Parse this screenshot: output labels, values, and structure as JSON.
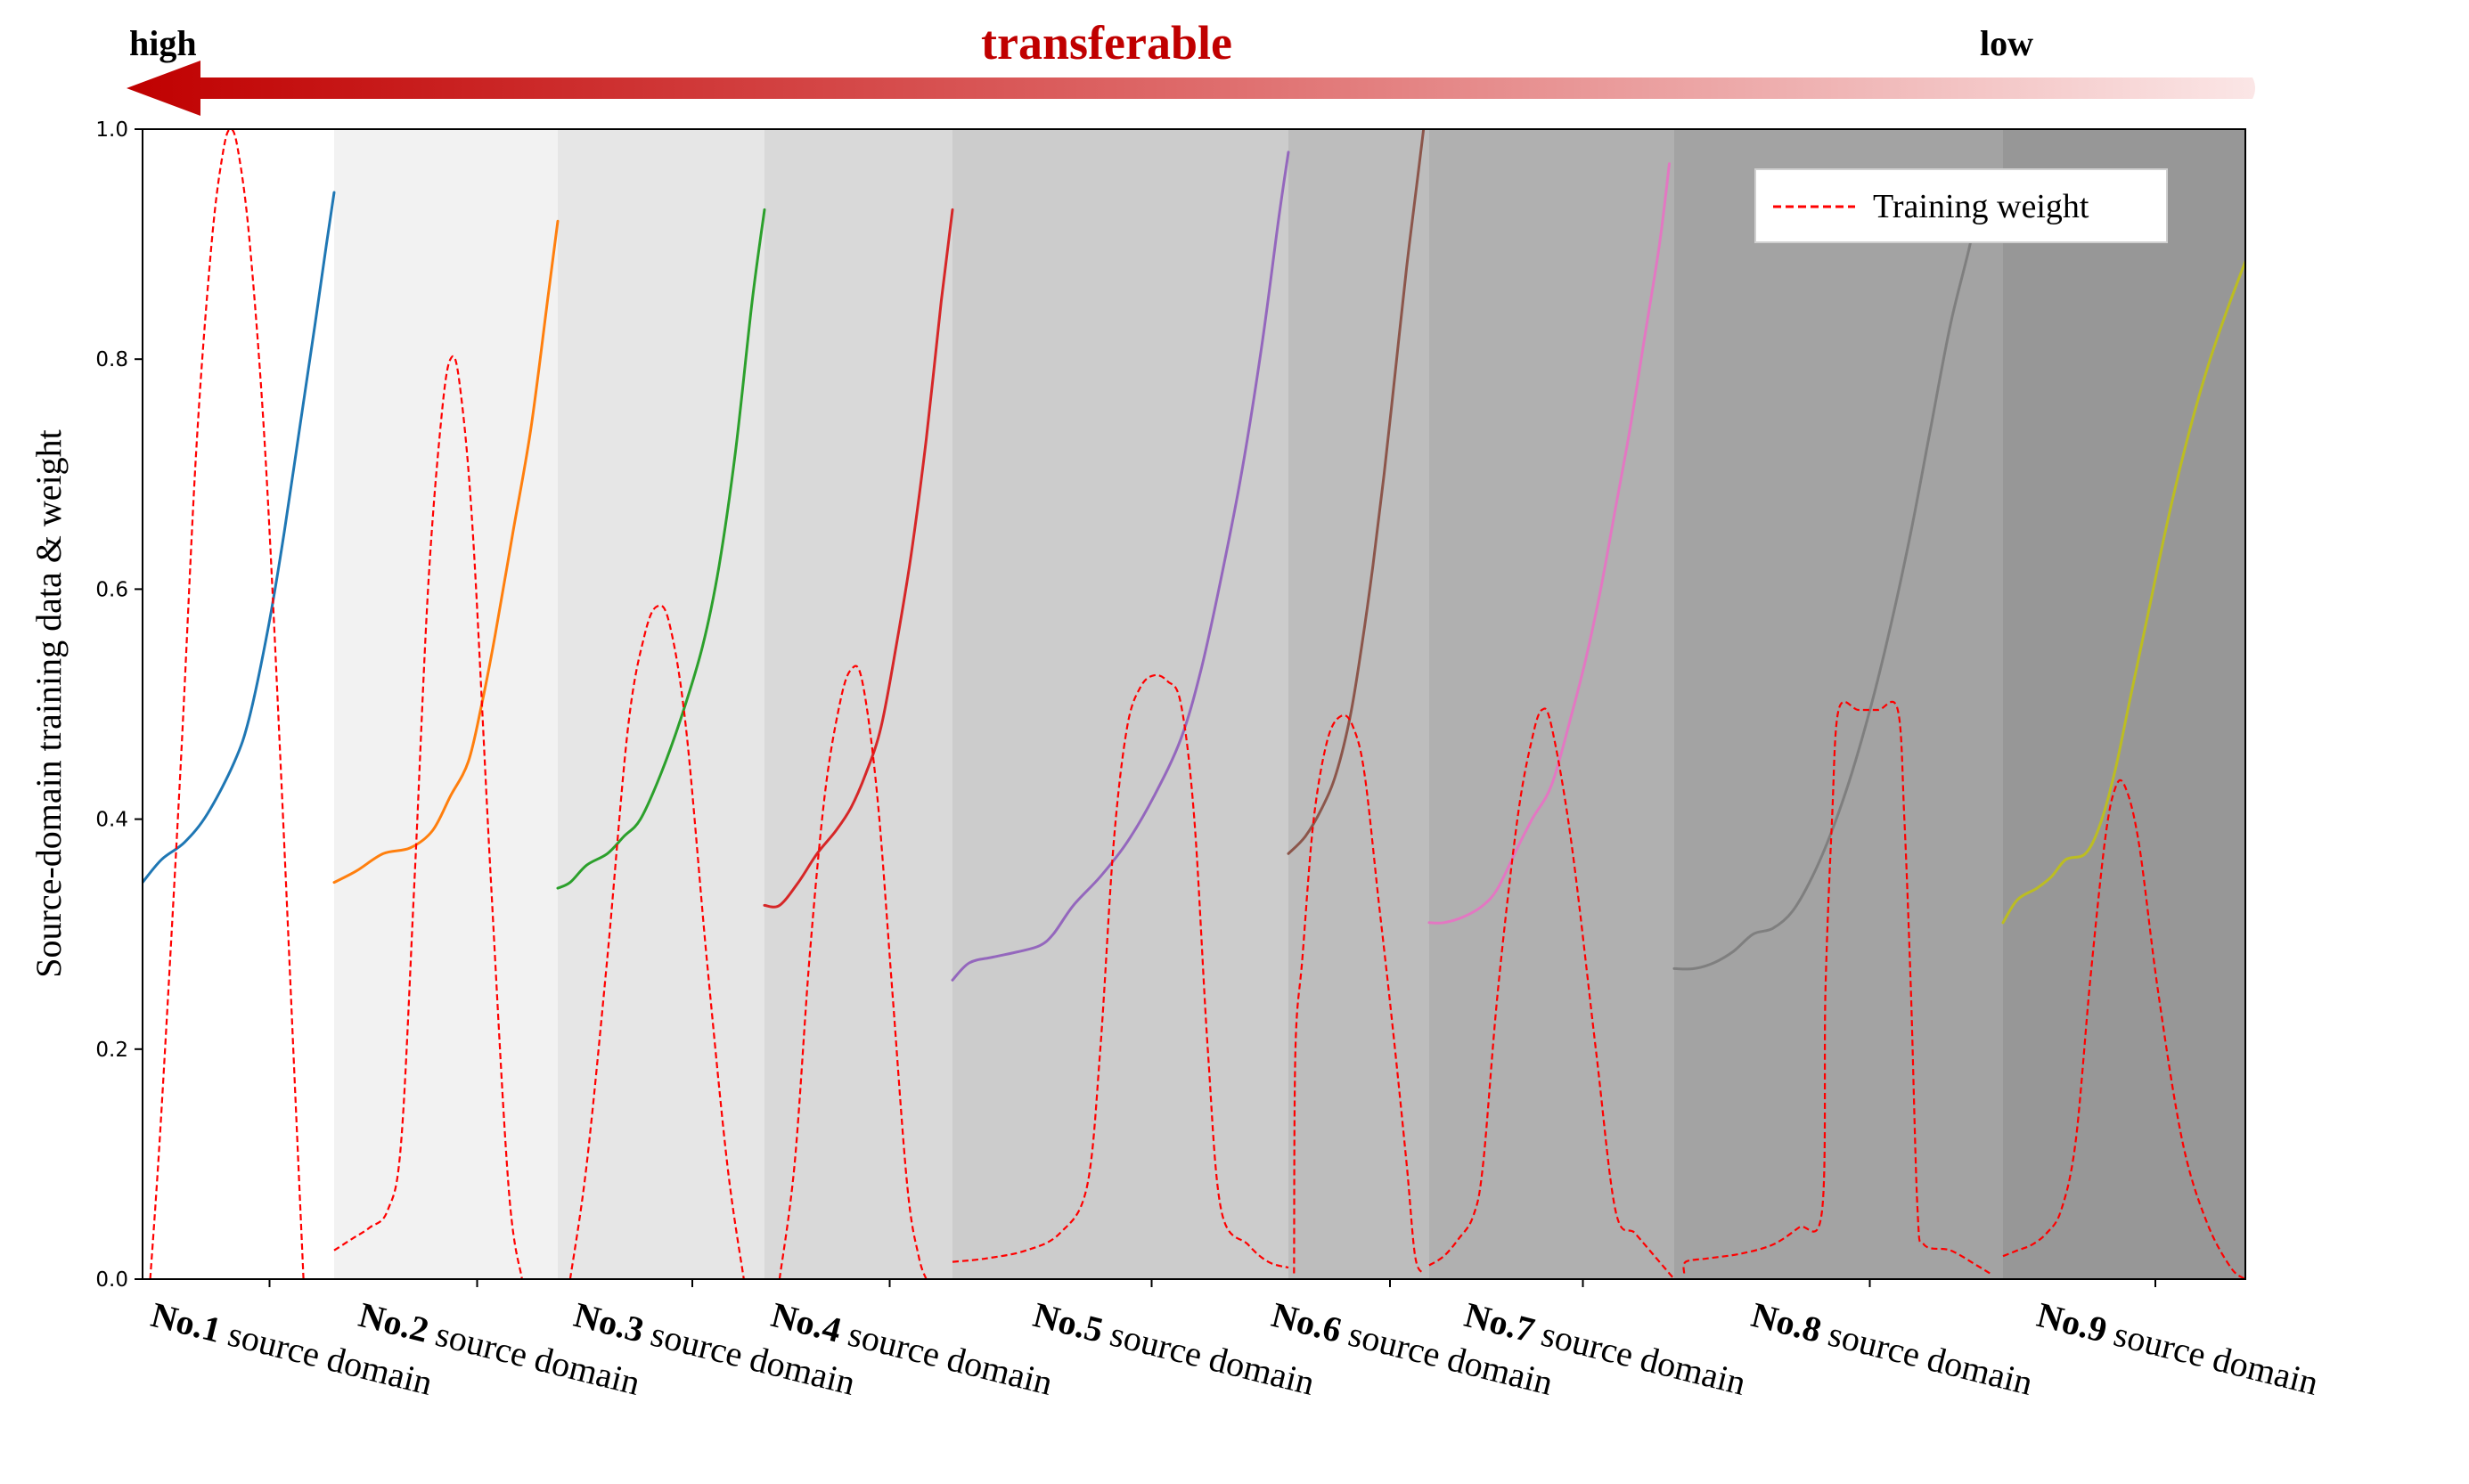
{
  "header": {
    "title": "transferable",
    "high_label": "high",
    "low_label": "low",
    "arrow_color": "#c00000"
  },
  "chart_data": {
    "type": "line",
    "ylabel": "Source-domain training data & weight",
    "ylim": [
      0,
      1.0
    ],
    "yticks": [
      "0.0",
      "0.2",
      "0.4",
      "0.6",
      "0.8",
      "1.0"
    ],
    "grid": false,
    "legend": {
      "placement": "top-right",
      "entries": [
        "Training weight"
      ]
    },
    "domains": [
      {
        "label_bold": "No.1",
        "label_rest": " source domain",
        "background": "#ffffff",
        "color": "#1f77b4",
        "data_curve": [
          [
            0,
            0.345
          ],
          [
            0.1,
            0.365
          ],
          [
            0.22,
            0.38
          ],
          [
            0.34,
            0.405
          ],
          [
            0.48,
            0.45
          ],
          [
            0.56,
            0.49
          ],
          [
            0.66,
            0.57
          ],
          [
            0.74,
            0.65
          ],
          [
            0.82,
            0.74
          ],
          [
            0.9,
            0.83
          ],
          [
            0.96,
            0.9
          ],
          [
            1,
            0.945
          ]
        ],
        "weight": [
          [
            0.04,
            0
          ],
          [
            0.1,
            0.15
          ],
          [
            0.2,
            0.45
          ],
          [
            0.28,
            0.72
          ],
          [
            0.36,
            0.9
          ],
          [
            0.42,
            0.98
          ],
          [
            0.46,
            1.0
          ],
          [
            0.5,
            0.98
          ],
          [
            0.56,
            0.9
          ],
          [
            0.64,
            0.72
          ],
          [
            0.72,
            0.45
          ],
          [
            0.8,
            0.15
          ],
          [
            0.84,
            0
          ]
        ]
      },
      {
        "label_bold": "No.2",
        "label_rest": " source domain",
        "background": "#f2f2f2",
        "color": "#ff7f0e",
        "data_curve": [
          [
            0,
            0.345
          ],
          [
            0.1,
            0.355
          ],
          [
            0.22,
            0.37
          ],
          [
            0.34,
            0.375
          ],
          [
            0.44,
            0.39
          ],
          [
            0.52,
            0.42
          ],
          [
            0.6,
            0.45
          ],
          [
            0.66,
            0.5
          ],
          [
            0.72,
            0.56
          ],
          [
            0.8,
            0.65
          ],
          [
            0.88,
            0.74
          ],
          [
            0.96,
            0.86
          ],
          [
            1,
            0.92
          ]
        ],
        "weight": [
          [
            0,
            0.025
          ],
          [
            0.08,
            0.035
          ],
          [
            0.16,
            0.045
          ],
          [
            0.24,
            0.06
          ],
          [
            0.3,
            0.12
          ],
          [
            0.36,
            0.35
          ],
          [
            0.42,
            0.6
          ],
          [
            0.48,
            0.75
          ],
          [
            0.52,
            0.8
          ],
          [
            0.56,
            0.78
          ],
          [
            0.62,
            0.65
          ],
          [
            0.7,
            0.35
          ],
          [
            0.78,
            0.08
          ],
          [
            0.84,
            0
          ]
        ]
      },
      {
        "label_bold": "No.3",
        "label_rest": " source domain",
        "background": "#e6e6e6",
        "color": "#2ca02c",
        "data_curve": [
          [
            0,
            0.34
          ],
          [
            0.06,
            0.345
          ],
          [
            0.14,
            0.36
          ],
          [
            0.24,
            0.37
          ],
          [
            0.32,
            0.385
          ],
          [
            0.4,
            0.4
          ],
          [
            0.5,
            0.44
          ],
          [
            0.6,
            0.49
          ],
          [
            0.7,
            0.55
          ],
          [
            0.78,
            0.62
          ],
          [
            0.86,
            0.72
          ],
          [
            0.94,
            0.85
          ],
          [
            1,
            0.93
          ]
        ],
        "weight": [
          [
            0.06,
            0
          ],
          [
            0.14,
            0.1
          ],
          [
            0.24,
            0.28
          ],
          [
            0.34,
            0.48
          ],
          [
            0.42,
            0.56
          ],
          [
            0.48,
            0.585
          ],
          [
            0.54,
            0.57
          ],
          [
            0.62,
            0.48
          ],
          [
            0.72,
            0.28
          ],
          [
            0.82,
            0.1
          ],
          [
            0.9,
            0
          ]
        ]
      },
      {
        "label_bold": "No.4",
        "label_rest": " source domain",
        "background": "#d9d9d9",
        "color": "#d62728",
        "data_curve": [
          [
            0,
            0.325
          ],
          [
            0.08,
            0.325
          ],
          [
            0.18,
            0.345
          ],
          [
            0.28,
            0.37
          ],
          [
            0.38,
            0.39
          ],
          [
            0.46,
            0.41
          ],
          [
            0.54,
            0.44
          ],
          [
            0.62,
            0.48
          ],
          [
            0.7,
            0.55
          ],
          [
            0.78,
            0.63
          ],
          [
            0.86,
            0.73
          ],
          [
            0.94,
            0.85
          ],
          [
            1,
            0.93
          ]
        ],
        "weight": [
          [
            0.08,
            0
          ],
          [
            0.16,
            0.1
          ],
          [
            0.24,
            0.28
          ],
          [
            0.32,
            0.42
          ],
          [
            0.4,
            0.5
          ],
          [
            0.46,
            0.53
          ],
          [
            0.52,
            0.52
          ],
          [
            0.6,
            0.42
          ],
          [
            0.68,
            0.25
          ],
          [
            0.76,
            0.08
          ],
          [
            0.82,
            0.02
          ],
          [
            0.86,
            0
          ]
        ]
      },
      {
        "label_bold": "No.5",
        "label_rest": " source domain",
        "background": "#cccccc",
        "color": "#9467bd",
        "data_curve": [
          [
            0,
            0.26
          ],
          [
            0.05,
            0.275
          ],
          [
            0.12,
            0.28
          ],
          [
            0.2,
            0.285
          ],
          [
            0.26,
            0.29
          ],
          [
            0.3,
            0.3
          ],
          [
            0.36,
            0.325
          ],
          [
            0.44,
            0.35
          ],
          [
            0.52,
            0.38
          ],
          [
            0.6,
            0.42
          ],
          [
            0.68,
            0.47
          ],
          [
            0.74,
            0.53
          ],
          [
            0.8,
            0.61
          ],
          [
            0.86,
            0.7
          ],
          [
            0.92,
            0.81
          ],
          [
            0.97,
            0.92
          ],
          [
            1,
            0.98
          ]
        ],
        "weight": [
          [
            0,
            0.015
          ],
          [
            0.1,
            0.018
          ],
          [
            0.22,
            0.025
          ],
          [
            0.32,
            0.04
          ],
          [
            0.4,
            0.08
          ],
          [
            0.44,
            0.2
          ],
          [
            0.48,
            0.38
          ],
          [
            0.52,
            0.48
          ],
          [
            0.56,
            0.515
          ],
          [
            0.6,
            0.525
          ],
          [
            0.64,
            0.52
          ],
          [
            0.68,
            0.5
          ],
          [
            0.72,
            0.4
          ],
          [
            0.76,
            0.2
          ],
          [
            0.8,
            0.06
          ],
          [
            0.88,
            0.03
          ],
          [
            0.94,
            0.015
          ],
          [
            1,
            0.01
          ]
        ]
      },
      {
        "label_bold": "No.6",
        "label_rest": " source domain",
        "background": "#bdbdbd",
        "color": "#8c564b",
        "data_curve": [
          [
            0,
            0.37
          ],
          [
            0.12,
            0.385
          ],
          [
            0.24,
            0.41
          ],
          [
            0.34,
            0.44
          ],
          [
            0.44,
            0.49
          ],
          [
            0.52,
            0.55
          ],
          [
            0.6,
            0.62
          ],
          [
            0.68,
            0.7
          ],
          [
            0.76,
            0.79
          ],
          [
            0.84,
            0.88
          ],
          [
            0.92,
            0.96
          ],
          [
            0.96,
            1.0
          ]
        ],
        "weight": [
          [
            0.04,
            0.005
          ],
          [
            0.05,
            0.2
          ],
          [
            0.1,
            0.28
          ],
          [
            0.18,
            0.4
          ],
          [
            0.28,
            0.47
          ],
          [
            0.38,
            0.49
          ],
          [
            0.46,
            0.48
          ],
          [
            0.54,
            0.44
          ],
          [
            0.64,
            0.33
          ],
          [
            0.74,
            0.22
          ],
          [
            0.84,
            0.1
          ],
          [
            0.9,
            0.02
          ],
          [
            0.96,
            0.005
          ]
        ]
      },
      {
        "label_bold": "No.7",
        "label_rest": " source domain",
        "background": "#b0b0b0",
        "color": "#e377c2",
        "data_curve": [
          [
            0,
            0.31
          ],
          [
            0.06,
            0.31
          ],
          [
            0.14,
            0.315
          ],
          [
            0.22,
            0.325
          ],
          [
            0.28,
            0.34
          ],
          [
            0.36,
            0.375
          ],
          [
            0.42,
            0.4
          ],
          [
            0.5,
            0.43
          ],
          [
            0.58,
            0.49
          ],
          [
            0.64,
            0.54
          ],
          [
            0.7,
            0.6
          ],
          [
            0.76,
            0.67
          ],
          [
            0.82,
            0.74
          ],
          [
            0.88,
            0.82
          ],
          [
            0.94,
            0.9
          ],
          [
            0.98,
            0.97
          ]
        ],
        "weight": [
          [
            0,
            0.012
          ],
          [
            0.06,
            0.02
          ],
          [
            0.12,
            0.035
          ],
          [
            0.18,
            0.055
          ],
          [
            0.22,
            0.1
          ],
          [
            0.28,
            0.25
          ],
          [
            0.36,
            0.4
          ],
          [
            0.42,
            0.47
          ],
          [
            0.46,
            0.495
          ],
          [
            0.5,
            0.48
          ],
          [
            0.58,
            0.38
          ],
          [
            0.68,
            0.2
          ],
          [
            0.76,
            0.06
          ],
          [
            0.84,
            0.04
          ],
          [
            0.92,
            0.02
          ],
          [
            1,
            0
          ]
        ]
      },
      {
        "label_bold": "No.8",
        "label_rest": " source domain",
        "background": "#a3a3a3",
        "color": "#7f7f7f",
        "data_curve": [
          [
            0,
            0.27
          ],
          [
            0.06,
            0.27
          ],
          [
            0.12,
            0.275
          ],
          [
            0.18,
            0.285
          ],
          [
            0.24,
            0.3
          ],
          [
            0.3,
            0.305
          ],
          [
            0.36,
            0.32
          ],
          [
            0.42,
            0.35
          ],
          [
            0.48,
            0.39
          ],
          [
            0.54,
            0.44
          ],
          [
            0.6,
            0.5
          ],
          [
            0.66,
            0.57
          ],
          [
            0.72,
            0.65
          ],
          [
            0.78,
            0.74
          ],
          [
            0.84,
            0.83
          ],
          [
            0.9,
            0.9
          ],
          [
            0.94,
            0.96
          ]
        ],
        "weight": [
          [
            0.03,
            0.005
          ],
          [
            0.035,
            0.015
          ],
          [
            0.1,
            0.018
          ],
          [
            0.2,
            0.022
          ],
          [
            0.3,
            0.03
          ],
          [
            0.38,
            0.045
          ],
          [
            0.45,
            0.06
          ],
          [
            0.46,
            0.25
          ],
          [
            0.48,
            0.4
          ],
          [
            0.5,
            0.495
          ],
          [
            0.56,
            0.495
          ],
          [
            0.62,
            0.495
          ],
          [
            0.68,
            0.495
          ],
          [
            0.7,
            0.4
          ],
          [
            0.72,
            0.25
          ],
          [
            0.74,
            0.06
          ],
          [
            0.76,
            0.03
          ],
          [
            0.84,
            0.025
          ],
          [
            0.92,
            0.012
          ],
          [
            0.96,
            0.005
          ]
        ]
      },
      {
        "label_bold": "No.9",
        "label_rest": " source domain",
        "background": "#979797",
        "color": "#bcbd22",
        "data_curve": [
          [
            0,
            0.31
          ],
          [
            0.06,
            0.33
          ],
          [
            0.14,
            0.34
          ],
          [
            0.2,
            0.35
          ],
          [
            0.26,
            0.365
          ],
          [
            0.34,
            0.37
          ],
          [
            0.4,
            0.395
          ],
          [
            0.46,
            0.44
          ],
          [
            0.52,
            0.5
          ],
          [
            0.6,
            0.58
          ],
          [
            0.68,
            0.66
          ],
          [
            0.76,
            0.73
          ],
          [
            0.84,
            0.79
          ],
          [
            0.92,
            0.84
          ],
          [
            1,
            0.885
          ]
        ],
        "weight": [
          [
            0,
            0.02
          ],
          [
            0.06,
            0.025
          ],
          [
            0.12,
            0.03
          ],
          [
            0.18,
            0.04
          ],
          [
            0.24,
            0.06
          ],
          [
            0.3,
            0.12
          ],
          [
            0.36,
            0.26
          ],
          [
            0.42,
            0.38
          ],
          [
            0.46,
            0.425
          ],
          [
            0.5,
            0.43
          ],
          [
            0.56,
            0.38
          ],
          [
            0.64,
            0.25
          ],
          [
            0.74,
            0.12
          ],
          [
            0.84,
            0.05
          ],
          [
            0.94,
            0.01
          ],
          [
            1,
            0
          ]
        ]
      }
    ]
  }
}
